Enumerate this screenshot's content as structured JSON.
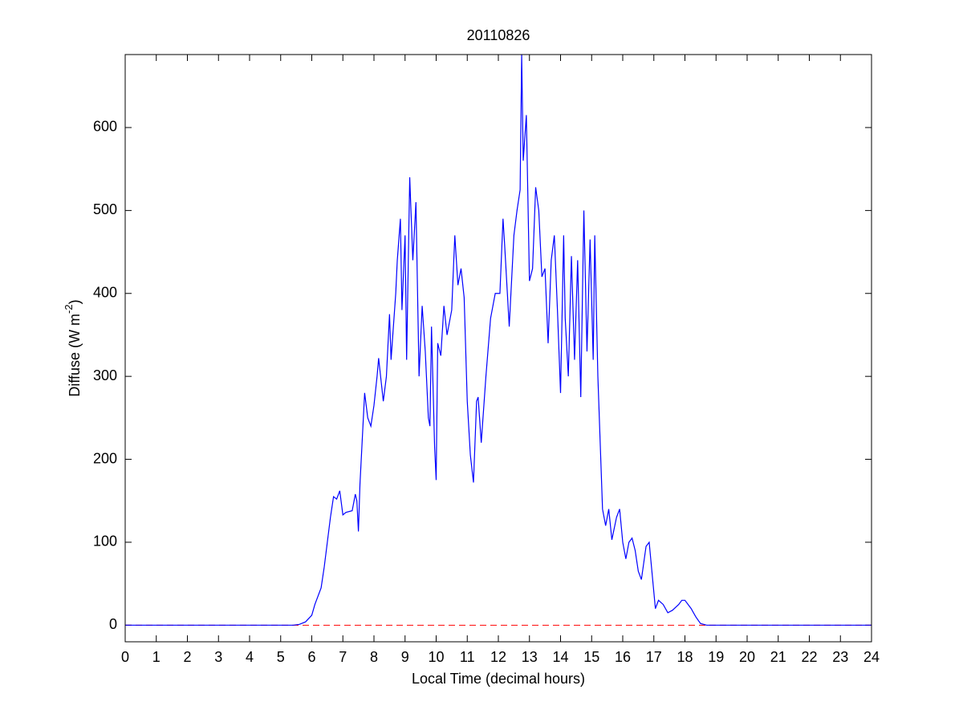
{
  "chart_data": {
    "type": "line",
    "title": "20110826",
    "x_label": "Local Time (decimal hours)",
    "y_label": [
      "Diffuse (W m",
      "-2",
      ")"
    ],
    "xlim": [
      0,
      24
    ],
    "ylim": [
      -20,
      688
    ],
    "xticks": [
      0,
      1,
      2,
      3,
      4,
      5,
      6,
      7,
      8,
      9,
      10,
      11,
      12,
      13,
      14,
      15,
      16,
      17,
      18,
      19,
      20,
      21,
      22,
      23,
      24
    ],
    "yticks": [
      0,
      100,
      200,
      300,
      400,
      500,
      600
    ],
    "zero_line": {
      "y": 0,
      "color": "#ff0000",
      "dashed": true
    },
    "series": [
      {
        "color": "#0000ff",
        "x": [
          0,
          5.4,
          5.6,
          5.8,
          6.0,
          6.1,
          6.3,
          6.4,
          6.5,
          6.6,
          6.7,
          6.8,
          6.9,
          7.0,
          7.1,
          7.3,
          7.4,
          7.45,
          7.5,
          7.55,
          7.7,
          7.8,
          7.9,
          8.0,
          8.1,
          8.15,
          8.3,
          8.4,
          8.5,
          8.55,
          8.7,
          8.75,
          8.85,
          8.9,
          9.0,
          9.05,
          9.15,
          9.25,
          9.35,
          9.45,
          9.55,
          9.65,
          9.75,
          9.8,
          9.85,
          9.95,
          10.0,
          10.05,
          10.15,
          10.25,
          10.35,
          10.5,
          10.6,
          10.7,
          10.8,
          10.9,
          11.0,
          11.1,
          11.2,
          11.3,
          11.35,
          11.45,
          11.6,
          11.75,
          11.9,
          12.05,
          12.15,
          12.2,
          12.35,
          12.5,
          12.6,
          12.7,
          12.75,
          12.8,
          12.9,
          13.0,
          13.1,
          13.2,
          13.3,
          13.4,
          13.5,
          13.6,
          13.7,
          13.8,
          13.9,
          14.0,
          14.1,
          14.15,
          14.25,
          14.35,
          14.45,
          14.55,
          14.65,
          14.75,
          14.85,
          14.95,
          15.05,
          15.1,
          15.2,
          15.35,
          15.45,
          15.55,
          15.65,
          15.8,
          15.9,
          16.0,
          16.1,
          16.2,
          16.3,
          16.4,
          16.5,
          16.6,
          16.75,
          16.85,
          16.95,
          17.05,
          17.15,
          17.3,
          17.45,
          17.6,
          17.8,
          17.9,
          18.0,
          18.2,
          18.35,
          18.5,
          18.7,
          24
        ],
        "values": [
          0,
          0,
          1,
          4,
          12,
          25,
          45,
          70,
          100,
          130,
          155,
          152,
          162,
          133,
          136,
          138,
          158,
          150,
          113,
          170,
          280,
          250,
          240,
          265,
          300,
          322,
          270,
          300,
          375,
          320,
          400,
          440,
          490,
          380,
          470,
          320,
          540,
          440,
          510,
          300,
          385,
          330,
          250,
          240,
          360,
          215,
          175,
          340,
          325,
          385,
          350,
          380,
          470,
          410,
          430,
          395,
          270,
          205,
          172,
          270,
          275,
          220,
          300,
          370,
          400,
          400,
          490,
          460,
          360,
          470,
          500,
          525,
          688,
          560,
          615,
          415,
          430,
          528,
          500,
          420,
          430,
          340,
          440,
          470,
          380,
          280,
          470,
          370,
          300,
          445,
          320,
          440,
          275,
          500,
          330,
          465,
          320,
          470,
          300,
          140,
          120,
          140,
          103,
          130,
          140,
          100,
          80,
          100,
          105,
          90,
          65,
          55,
          95,
          100,
          60,
          20,
          30,
          25,
          15,
          18,
          25,
          30,
          30,
          20,
          10,
          2,
          0,
          0
        ]
      }
    ]
  }
}
